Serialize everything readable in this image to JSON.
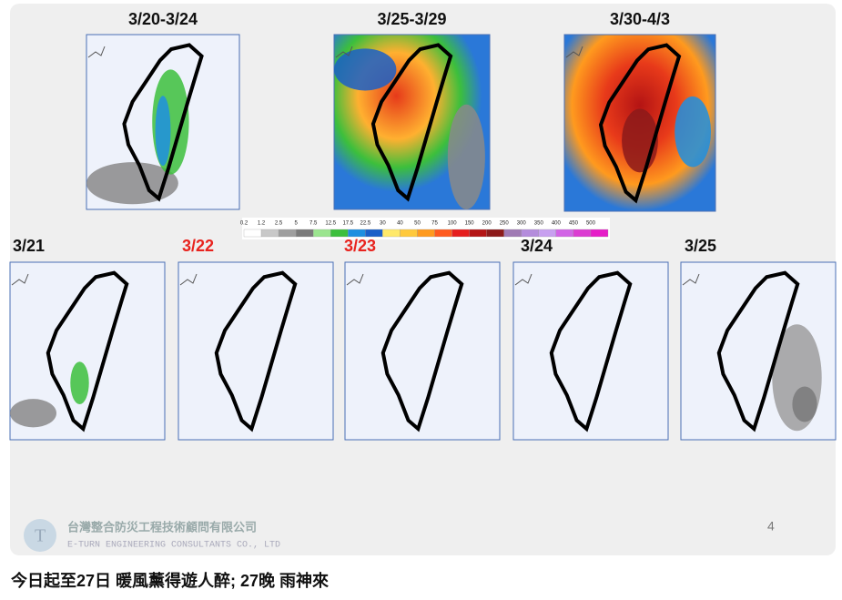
{
  "slide": {
    "period_maps": [
      {
        "title": "3/20-3/24"
      },
      {
        "title": "3/25-3/29"
      },
      {
        "title": "3/30-4/3"
      }
    ],
    "legend": [
      {
        "label": "0.2",
        "color": "#ffffff"
      },
      {
        "label": "1.2",
        "color": "#c8c8c8"
      },
      {
        "label": "2.5",
        "color": "#9e9e9e"
      },
      {
        "label": "5",
        "color": "#7a7a7a"
      },
      {
        "label": "7.5",
        "color": "#9be58f"
      },
      {
        "label": "12.5",
        "color": "#3cbf3c"
      },
      {
        "label": "17.5",
        "color": "#1e8fe0"
      },
      {
        "label": "22.5",
        "color": "#1a5fc8"
      },
      {
        "label": "30",
        "color": "#ffe96a"
      },
      {
        "label": "40",
        "color": "#ffc93c"
      },
      {
        "label": "50",
        "color": "#ff9a1e"
      },
      {
        "label": "75",
        "color": "#ff5a1e"
      },
      {
        "label": "100",
        "color": "#e61e1e"
      },
      {
        "label": "150",
        "color": "#b41414"
      },
      {
        "label": "200",
        "color": "#8c1a1a"
      },
      {
        "label": "250",
        "color": "#a07ab4"
      },
      {
        "label": "300",
        "color": "#b48cdc"
      },
      {
        "label": "350",
        "color": "#c8a0f0"
      },
      {
        "label": "400",
        "color": "#d264e6"
      },
      {
        "label": "450",
        "color": "#dc3cd2"
      },
      {
        "label": "500",
        "color": "#e61ec8"
      }
    ],
    "daily_maps": [
      {
        "title": "3/21",
        "color": "#111111"
      },
      {
        "title": "3/22",
        "color": "#e8231e"
      },
      {
        "title": "3/23",
        "color": "#e8231e"
      },
      {
        "title": "3/24",
        "color": "#111111"
      },
      {
        "title": "3/25",
        "color": "#111111"
      }
    ],
    "company": "台灣整合防災工程技術顧問有限公司",
    "company_en": "E-TURN ENGINEERING CONSULTANTS CO., LTD",
    "page_number": "4"
  },
  "caption": "今日起至27日 暖風薰得遊人醉; 27晚 雨神來"
}
